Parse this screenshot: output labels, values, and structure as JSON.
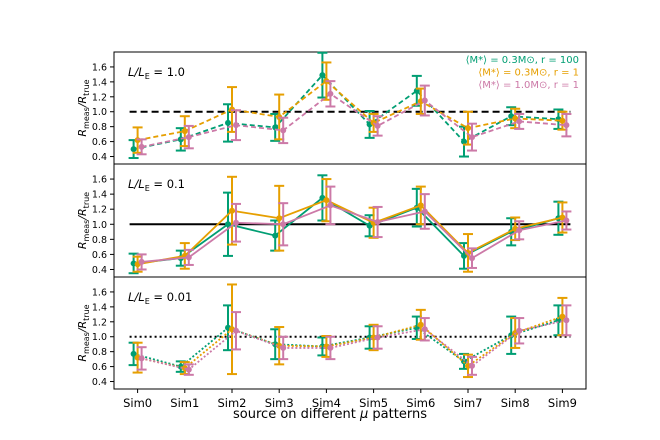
{
  "chart_data": [
    {
      "type": "line",
      "panel_label": "L/L_E = 1.0",
      "label_main": "L/L",
      "label_sub": "E",
      "label_rest": " = 1.0",
      "reference_line": {
        "y": 1.0,
        "style": "dashed"
      },
      "categories": [
        "Sim0",
        "Sim1",
        "Sim2",
        "Sim3",
        "Sim4",
        "Sim5",
        "Sim6",
        "Sim7",
        "Sim8",
        "Sim9"
      ],
      "ylim": [
        0.3,
        1.8
      ],
      "yticks": [
        "0.4",
        "0.6",
        "0.8",
        "1.0",
        "1.2",
        "1.4",
        "1.6"
      ],
      "series": [
        {
          "name": "⟨M*⟩ = 0.3M⊙, r = 100",
          "color": "#009e73",
          "values": [
            0.5,
            0.63,
            0.85,
            0.79,
            1.49,
            0.83,
            1.28,
            0.6,
            0.94,
            0.9
          ],
          "err": [
            0.12,
            0.15,
            0.25,
            0.18,
            0.3,
            0.18,
            0.2,
            0.2,
            0.12,
            0.13
          ]
        },
        {
          "name": "⟨M*⟩ = 0.3M⊙, r = 1",
          "color": "#e69f00",
          "values": [
            0.62,
            0.74,
            1.03,
            0.93,
            1.41,
            0.85,
            1.14,
            0.78,
            0.91,
            0.88
          ],
          "err": [
            0.17,
            0.2,
            0.3,
            0.3,
            0.25,
            0.12,
            0.17,
            0.22,
            0.13,
            0.12
          ]
        },
        {
          "name": "⟨M*⟩ = 1.0M⊙, r = 1",
          "color": "#cc79a7",
          "values": [
            0.53,
            0.66,
            0.82,
            0.75,
            1.24,
            0.81,
            1.15,
            0.66,
            0.87,
            0.82
          ],
          "err": [
            0.1,
            0.15,
            0.2,
            0.17,
            0.17,
            0.13,
            0.2,
            0.18,
            0.1,
            0.15
          ]
        }
      ]
    },
    {
      "type": "line",
      "panel_label": "L/L_E = 0.1",
      "label_main": "L/L",
      "label_sub": "E",
      "label_rest": " = 0.1",
      "reference_line": {
        "y": 1.0,
        "style": "solid"
      },
      "categories": [
        "Sim0",
        "Sim1",
        "Sim2",
        "Sim3",
        "Sim4",
        "Sim5",
        "Sim6",
        "Sim7",
        "Sim8",
        "Sim9"
      ],
      "ylim": [
        0.3,
        1.8
      ],
      "yticks": [
        "0.4",
        "0.6",
        "0.8",
        "1.0",
        "1.2",
        "1.4",
        "1.6"
      ],
      "series": [
        {
          "name": "⟨M*⟩ = 0.3M⊙, r = 100",
          "color": "#009e73",
          "values": [
            0.48,
            0.55,
            1.0,
            0.85,
            1.35,
            0.98,
            1.22,
            0.58,
            0.9,
            1.08
          ],
          "err": [
            0.13,
            0.1,
            0.42,
            0.2,
            0.3,
            0.14,
            0.25,
            0.17,
            0.18,
            0.22
          ]
        },
        {
          "name": "⟨M*⟩ = 0.3M⊙, r = 1",
          "color": "#e69f00",
          "values": [
            0.47,
            0.58,
            1.18,
            1.08,
            1.32,
            1.02,
            1.25,
            0.62,
            0.94,
            1.09
          ],
          "err": [
            0.1,
            0.17,
            0.45,
            0.43,
            0.28,
            0.2,
            0.25,
            0.25,
            0.15,
            0.2
          ]
        },
        {
          "name": "⟨M*⟩ = 1.0M⊙, r = 1",
          "color": "#cc79a7",
          "values": [
            0.5,
            0.56,
            1.02,
            1.0,
            1.25,
            1.03,
            1.17,
            0.55,
            0.92,
            1.05
          ],
          "err": [
            0.1,
            0.1,
            0.25,
            0.28,
            0.25,
            0.2,
            0.23,
            0.13,
            0.12,
            0.12
          ]
        }
      ]
    },
    {
      "type": "line",
      "panel_label": "L/L_E = 0.01",
      "label_main": "L/L",
      "label_sub": "E",
      "label_rest": " = 0.01",
      "reference_line": {
        "y": 1.0,
        "style": "dotted"
      },
      "categories": [
        "Sim0",
        "Sim1",
        "Sim2",
        "Sim3",
        "Sim4",
        "Sim5",
        "Sim6",
        "Sim7",
        "Sim8",
        "Sim9"
      ],
      "ylim": [
        0.3,
        1.8
      ],
      "yticks": [
        "0.4",
        "0.6",
        "0.8",
        "1.0",
        "1.2",
        "1.4",
        "1.6"
      ],
      "series": [
        {
          "name": "⟨M*⟩ = 0.3M⊙, r = 100",
          "color": "#009e73",
          "values": [
            0.77,
            0.6,
            1.12,
            0.9,
            0.87,
            0.99,
            1.12,
            0.67,
            1.02,
            1.22
          ],
          "err": [
            0.15,
            0.07,
            0.3,
            0.2,
            0.12,
            0.15,
            0.15,
            0.1,
            0.25,
            0.2
          ]
        },
        {
          "name": "⟨M*⟩ = 0.3M⊙, r = 1",
          "color": "#e69f00",
          "values": [
            0.72,
            0.58,
            1.1,
            0.88,
            0.87,
            0.99,
            1.16,
            0.61,
            1.05,
            1.27
          ],
          "err": [
            0.2,
            0.08,
            0.6,
            0.25,
            0.14,
            0.17,
            0.2,
            0.15,
            0.2,
            0.25
          ]
        },
        {
          "name": "⟨M*⟩ = 1.0M⊙, r = 1",
          "color": "#cc79a7",
          "values": [
            0.71,
            0.56,
            1.08,
            0.85,
            0.85,
            0.99,
            1.1,
            0.61,
            1.08,
            1.22
          ],
          "err": [
            0.15,
            0.07,
            0.25,
            0.15,
            0.15,
            0.15,
            0.15,
            0.12,
            0.17,
            0.2
          ]
        }
      ]
    }
  ],
  "axes": {
    "ylabel_main": "R",
    "ylabel_sub_num": "meas",
    "ylabel_slash": "/R",
    "ylabel_sub_den": "true",
    "xlabel_prefix": "source on different ",
    "xlabel_mu": "μ",
    "xlabel_suffix": " patterns"
  },
  "legend": {
    "placement": "top-right",
    "entries": [
      {
        "text": "⟨M*⟩ = 0.3M⊙, r = 100",
        "color": "#009e73"
      },
      {
        "text": "⟨M*⟩ = 0.3M⊙, r = 1",
        "color": "#e69f00"
      },
      {
        "text": "⟨M*⟩ = 1.0M⊙, r = 1",
        "color": "#cc79a7"
      }
    ]
  },
  "grid": false
}
